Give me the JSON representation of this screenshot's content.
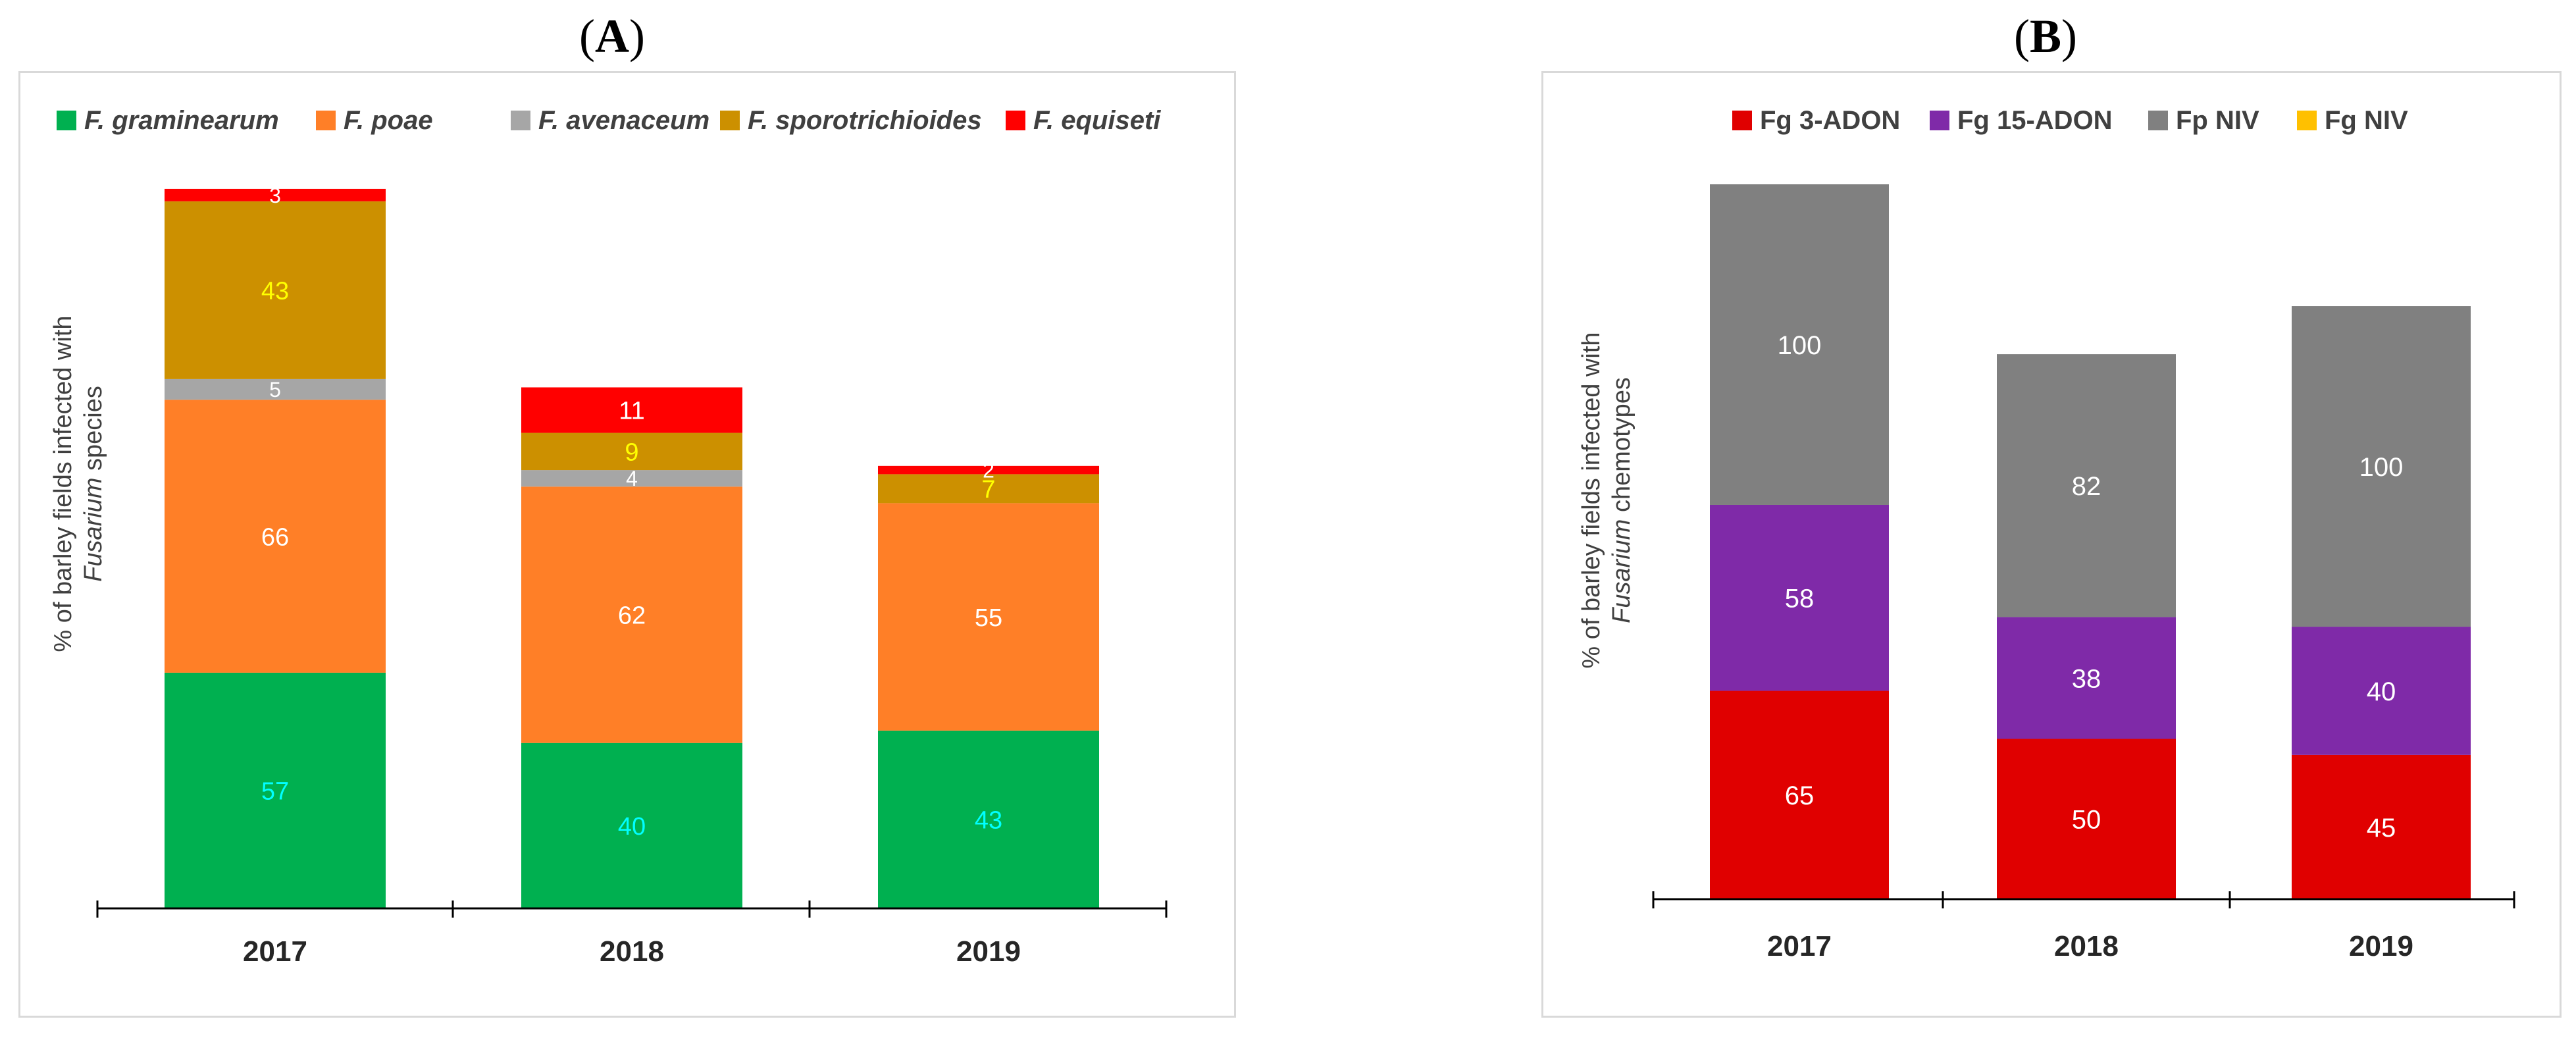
{
  "panels": [
    {
      "label_letter": "A"
    },
    {
      "label_letter": "B"
    }
  ],
  "chart_data": [
    {
      "type": "bar",
      "stacked": true,
      "title": "",
      "panel_label": "(A)",
      "categories": [
        "2017",
        "2018",
        "2019"
      ],
      "xlabel": "",
      "ylabel_parts": [
        "% of barley fields infected with",
        "Fusarium",
        " species"
      ],
      "ylim": [
        0,
        174
      ],
      "grid": false,
      "legend": "top",
      "series": [
        {
          "name": "F. graminearum",
          "color": "#00b050",
          "label_color": "#00ffff",
          "values": [
            57,
            40,
            43
          ]
        },
        {
          "name": "F. poae",
          "color": "#ff7f27",
          "label_color": "#ffffff",
          "values": [
            66,
            62,
            55
          ]
        },
        {
          "name": "F. avenaceum",
          "color": "#a6a6a6",
          "label_color": "#ffffff",
          "values": [
            5,
            4,
            0
          ]
        },
        {
          "name": "F. sporotrichioides",
          "color": "#cc9000",
          "label_color": "#ffff00",
          "values": [
            43,
            9,
            7
          ]
        },
        {
          "name": "F. equiseti",
          "color": "#ff0000",
          "label_color": "#ffffff",
          "values": [
            3,
            11,
            2
          ]
        }
      ]
    },
    {
      "type": "bar",
      "stacked": true,
      "title": "",
      "panel_label": "(B)",
      "categories": [
        "2017",
        "2018",
        "2019"
      ],
      "xlabel": "",
      "ylabel_parts": [
        "% of barley fields infected with",
        "Fusarium",
        " chemotypes"
      ],
      "ylim": [
        0,
        223
      ],
      "grid": false,
      "legend": "top",
      "series": [
        {
          "name": "Fg 3-ADON",
          "color": "#e00000",
          "label_color": "#ffffff",
          "values": [
            65,
            50,
            45
          ]
        },
        {
          "name": "Fg 15-ADON",
          "color": "#7f2aa8",
          "label_color": "#ffffff",
          "values": [
            58,
            38,
            40
          ]
        },
        {
          "name": "Fp NIV",
          "color": "#808080",
          "label_color": "#ffffff",
          "values": [
            100,
            82,
            100
          ]
        },
        {
          "name": "Fg NIV",
          "color": "#ffc000",
          "label_color": "#ffffff",
          "values": [
            0,
            0,
            0
          ]
        }
      ]
    }
  ]
}
